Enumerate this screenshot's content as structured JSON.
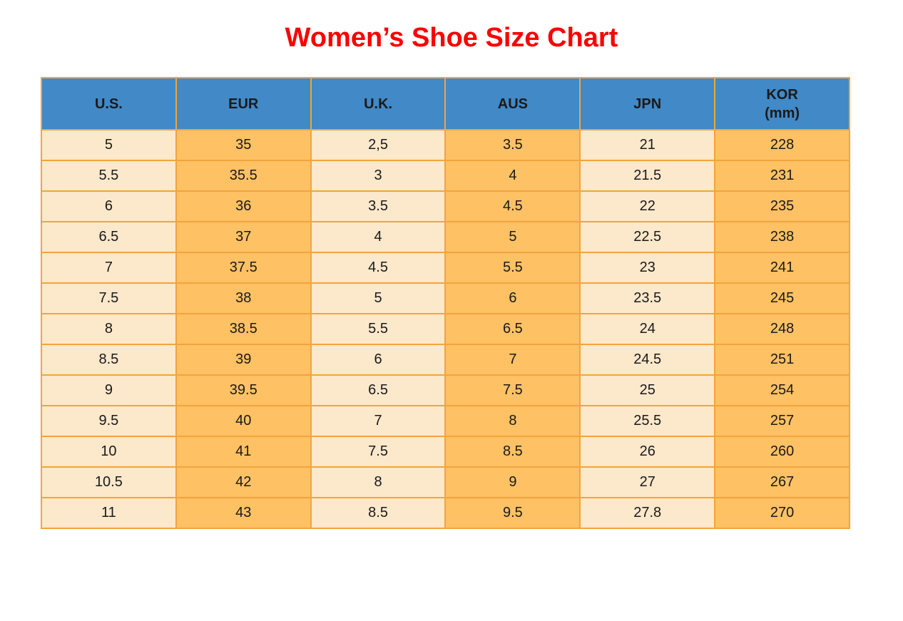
{
  "title": "Women’s Shoe Size Chart",
  "colors": {
    "title_red": "#FA0000",
    "header_blue": "#4189C7",
    "column_cream": "#FCE8CB",
    "column_orange": "#FEC164",
    "border_orange": "#F2A43D",
    "text": "#1A1A1A"
  },
  "table": {
    "columns": [
      {
        "key": "us",
        "label": "U.S."
      },
      {
        "key": "eur",
        "label": "EUR"
      },
      {
        "key": "uk",
        "label": "U.K."
      },
      {
        "key": "aus",
        "label": "AUS"
      },
      {
        "key": "jpn",
        "label": "JPN"
      },
      {
        "key": "kor",
        "label": "KOR",
        "sublabel": "(mm)"
      }
    ],
    "rows": [
      [
        "5",
        "35",
        "2,5",
        "3.5",
        "21",
        "228"
      ],
      [
        "5.5",
        "35.5",
        "3",
        "4",
        "21.5",
        "231"
      ],
      [
        "6",
        "36",
        "3.5",
        "4.5",
        "22",
        "235"
      ],
      [
        "6.5",
        "37",
        "4",
        "5",
        "22.5",
        "238"
      ],
      [
        "7",
        "37.5",
        "4.5",
        "5.5",
        "23",
        "241"
      ],
      [
        "7.5",
        "38",
        "5",
        "6",
        "23.5",
        "245"
      ],
      [
        "8",
        "38.5",
        "5.5",
        "6.5",
        "24",
        "248"
      ],
      [
        "8.5",
        "39",
        "6",
        "7",
        "24.5",
        "251"
      ],
      [
        "9",
        "39.5",
        "6.5",
        "7.5",
        "25",
        "254"
      ],
      [
        "9.5",
        "40",
        "7",
        "8",
        "25.5",
        "257"
      ],
      [
        "10",
        "41",
        "7.5",
        "8.5",
        "26",
        "260"
      ],
      [
        "10.5",
        "42",
        "8",
        "9",
        "27",
        "267"
      ],
      [
        "11",
        "43",
        "8.5",
        "9.5",
        "27.8",
        "270"
      ]
    ]
  },
  "chart_data": {
    "type": "table",
    "title": "Women’s Shoe Size Chart",
    "columns": [
      "U.S.",
      "EUR",
      "U.K.",
      "AUS",
      "JPN",
      "KOR (mm)"
    ],
    "rows": [
      [
        "5",
        "35",
        "2,5",
        "3.5",
        "21",
        "228"
      ],
      [
        "5.5",
        "35.5",
        "3",
        "4",
        "21.5",
        "231"
      ],
      [
        "6",
        "36",
        "3.5",
        "4.5",
        "22",
        "235"
      ],
      [
        "6.5",
        "37",
        "4",
        "5",
        "22.5",
        "238"
      ],
      [
        "7",
        "37.5",
        "4.5",
        "5.5",
        "23",
        "241"
      ],
      [
        "7.5",
        "38",
        "5",
        "6",
        "23.5",
        "245"
      ],
      [
        "8",
        "38.5",
        "5.5",
        "6.5",
        "24",
        "248"
      ],
      [
        "8.5",
        "39",
        "6",
        "7",
        "24.5",
        "251"
      ],
      [
        "9",
        "39.5",
        "6.5",
        "7.5",
        "25",
        "254"
      ],
      [
        "9.5",
        "40",
        "7",
        "8",
        "25.5",
        "257"
      ],
      [
        "10",
        "41",
        "7.5",
        "8.5",
        "26",
        "260"
      ],
      [
        "10.5",
        "42",
        "8",
        "9",
        "27",
        "267"
      ],
      [
        "11",
        "43",
        "8.5",
        "9.5",
        "27.8",
        "270"
      ]
    ]
  }
}
